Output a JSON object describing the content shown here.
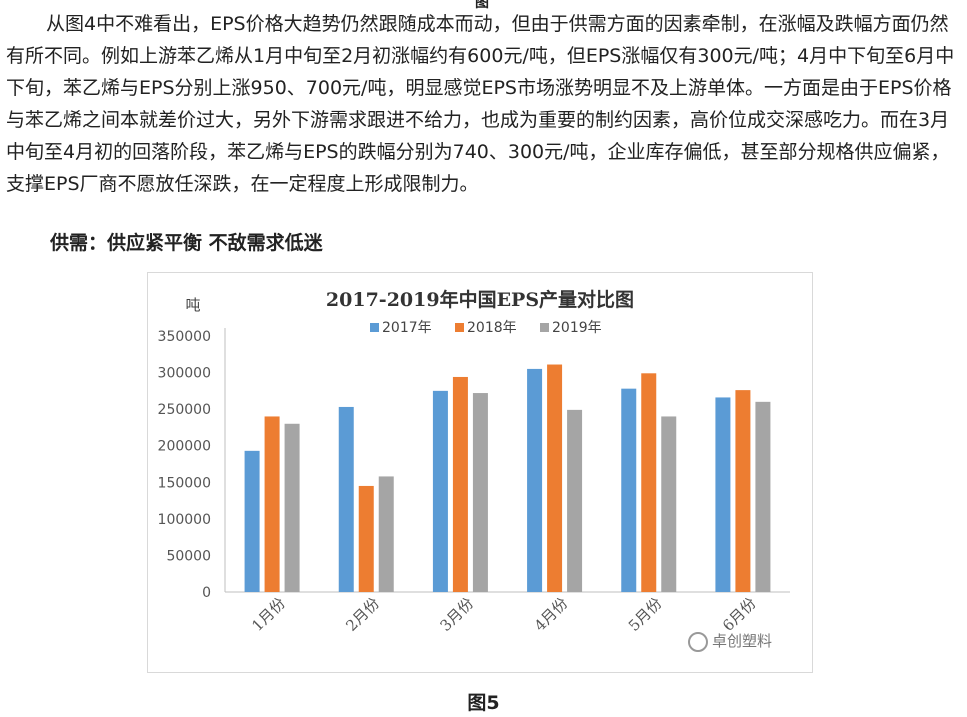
{
  "article": {
    "top_fragment": "图",
    "paragraph": "从图4中不难看出，EPS价格大趋势仍然跟随成本而动，但由于供需方面的因素牵制，在涨幅及跌幅方面仍然有所不同。例如上游苯乙烯从1月中旬至2月初涨幅约有600元/吨，但EPS涨幅仅有300元/吨；4月中下旬至6月中下旬，苯乙烯与EPS分别上涨950、700元/吨，明显感觉EPS市场涨势明显不及上游单体。一方面是由于EPS价格与苯乙烯之间本就差价过大，另外下游需求跟进不给力，也成为重要的制约因素，高价位成交深感吃力。而在3月中旬至4月初的回落阶段，苯乙烯与EPS的跌幅分别为740、300元/吨，企业库存偏低，甚至部分规格供应偏紧，支撑EPS厂商不愿放任深跌，在一定程度上形成限制力。",
    "subheading": "供需：供应紧平衡 不敌需求低迷",
    "caption": "图5"
  },
  "watermarks": {
    "logo_text": "卓创塑料"
  },
  "chart_data": {
    "type": "bar",
    "title": "2017-2019年中国EPS产量对比图",
    "ylabel": "吨",
    "xlabel": "",
    "ylim": [
      0,
      350000
    ],
    "yticks": [
      0,
      50000,
      100000,
      150000,
      200000,
      250000,
      300000,
      350000
    ],
    "grid": false,
    "legend_position": "top",
    "categories": [
      "1月份",
      "2月份",
      "3月份",
      "4月份",
      "5月份",
      "6月份"
    ],
    "series": [
      {
        "name": "2017年",
        "color": "#5b9bd5",
        "values": [
          193000,
          253000,
          275000,
          305000,
          278000,
          266000
        ]
      },
      {
        "name": "2018年",
        "color": "#ed7d31",
        "values": [
          240000,
          145000,
          294000,
          311000,
          299000,
          276000
        ]
      },
      {
        "name": "2019年",
        "color": "#a5a5a5",
        "values": [
          230000,
          158000,
          272000,
          249000,
          240000,
          260000
        ]
      }
    ]
  }
}
